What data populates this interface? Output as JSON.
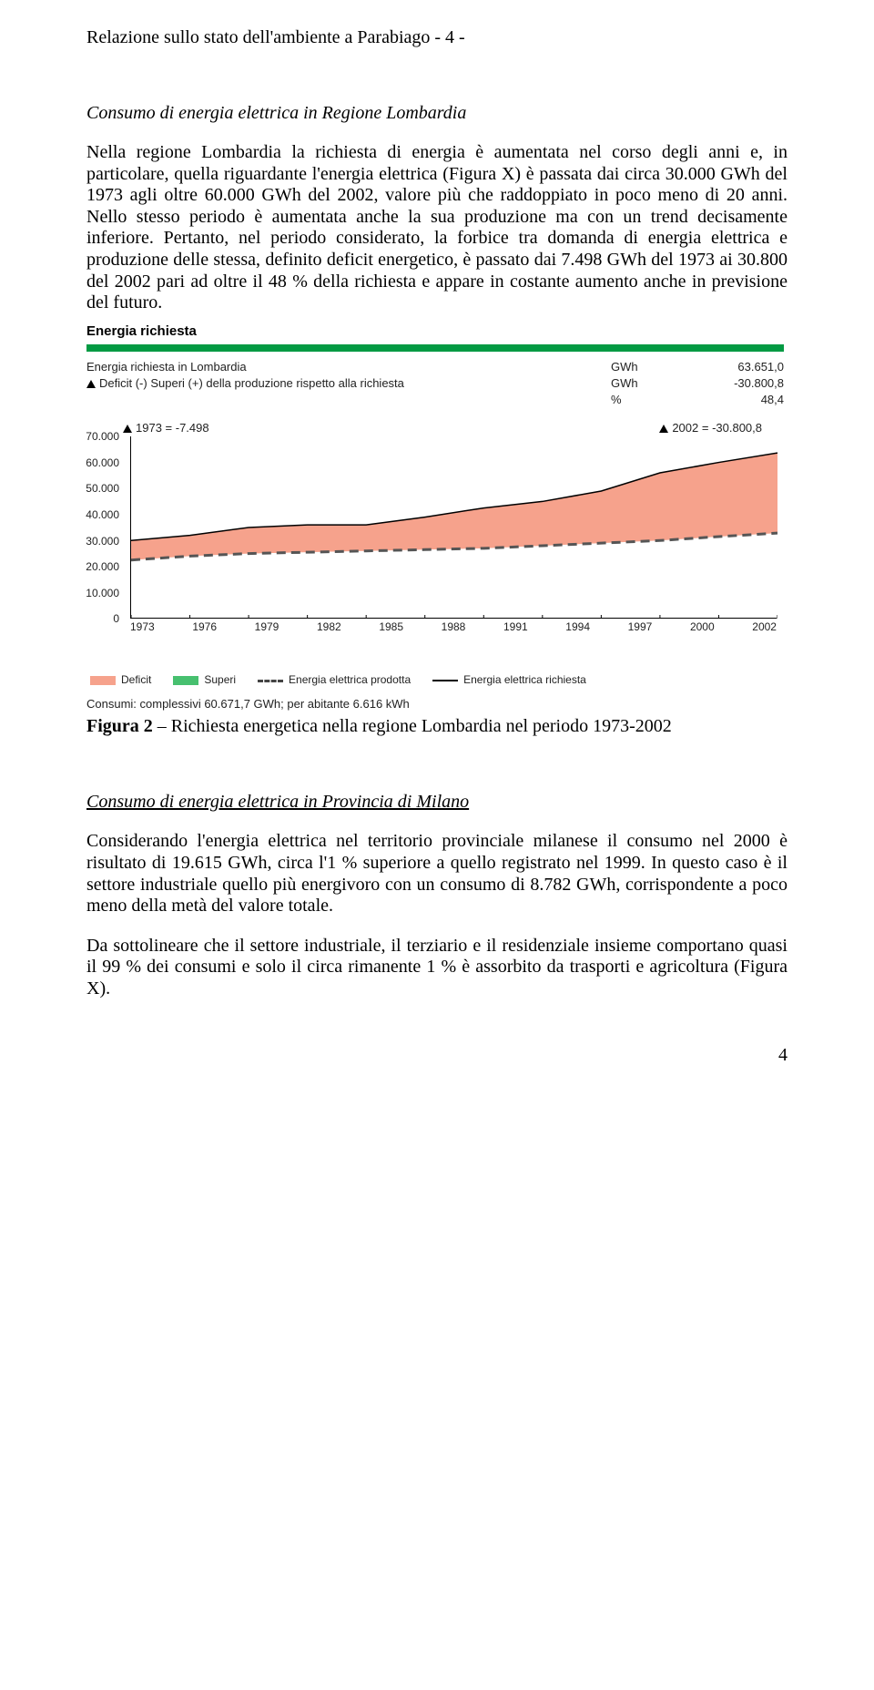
{
  "header": "Relazione sullo stato dell'ambiente a Parabiago - 4 -",
  "section1_title": "Consumo di energia elettrica in Regione Lombardia",
  "para1": "Nella regione Lombardia la richiesta di energia è aumentata nel corso degli anni e, in particolare, quella riguardante l'energia elettrica (Figura X) è passata dai circa 30.000 GWh del 1973 agli oltre 60.000 GWh del 2002, valore più che raddoppiato in poco meno di 20 anni. Nello stesso periodo è aumentata anche la sua produzione ma con un trend decisamente inferiore. Pertanto, nel periodo considerato, la forbice tra domanda di energia elettrica e produzione delle stessa, definito deficit energetico, è passato dai 7.498 GWh del 1973 ai 30.800 del 2002 pari ad oltre il 48 % della richiesta e appare in costante aumento anche in previsione del futuro.",
  "chart": {
    "title": "Energia richiesta",
    "accent_color": "#029a43",
    "meta_rows": [
      {
        "label": "Energia richiesta in Lombardia",
        "unit": "GWh",
        "value": "63.651,0"
      },
      {
        "label": "Deficit (-) Superi (+) della produzione rispetto alla richiesta",
        "unit": "GWh",
        "value": "-30.800,8",
        "delta": true
      },
      {
        "label": "",
        "unit": "%",
        "value": "48,4"
      }
    ],
    "anno_left": "1973 = -7.498",
    "anno_right": "2002 = -30.800,8",
    "y_ticks": [
      "0",
      "10.000",
      "20.000",
      "30.000",
      "40.000",
      "50.000",
      "60.000",
      "70.000"
    ],
    "y_max": 70000,
    "x_labels": [
      "1973",
      "1976",
      "1979",
      "1982",
      "1985",
      "1988",
      "1991",
      "1994",
      "1997",
      "2000",
      "2002"
    ],
    "deficit_color": "#f6a28c",
    "superi_color": "#47c06f",
    "prod_dash_color": "#555555",
    "req_line_color": "#000000",
    "richiesta": [
      30000,
      32000,
      35000,
      36000,
      36000,
      39000,
      42500,
      45000,
      49000,
      56000,
      60000,
      63650
    ],
    "prodotta": [
      22500,
      24000,
      25000,
      25500,
      26000,
      26500,
      27000,
      28000,
      29000,
      30000,
      31500,
      32850
    ],
    "legend": {
      "deficit": "Deficit",
      "superi": "Superi",
      "prodotta": "Energia elettrica prodotta",
      "richiesta": "Energia elettrica richiesta"
    },
    "footer": "Consumi: complessivi 60.671,7 GWh; per abitante 6.616 kWh"
  },
  "figure_caption_bold": "Figura 2",
  "figure_caption_rest": " – Richiesta energetica nella regione Lombardia nel periodo 1973-2002",
  "section2_title": "Consumo di energia elettrica in Provincia di Milano",
  "para2": "Considerando l'energia elettrica nel territorio provinciale milanese il consumo nel 2000 è risultato di 19.615 GWh, circa l'1 %  superiore a quello registrato nel 1999. In questo caso è il settore industriale quello più energivoro con un consumo di 8.782 GWh, corrispondente a poco meno della metà del valore totale.",
  "para3": "Da sottolineare che il settore industriale, il terziario e il residenziale insieme comportano quasi il 99 % dei consumi e solo il circa rimanente 1 %  è assorbito da trasporti e agricoltura (Figura X).",
  "page_number": "4"
}
